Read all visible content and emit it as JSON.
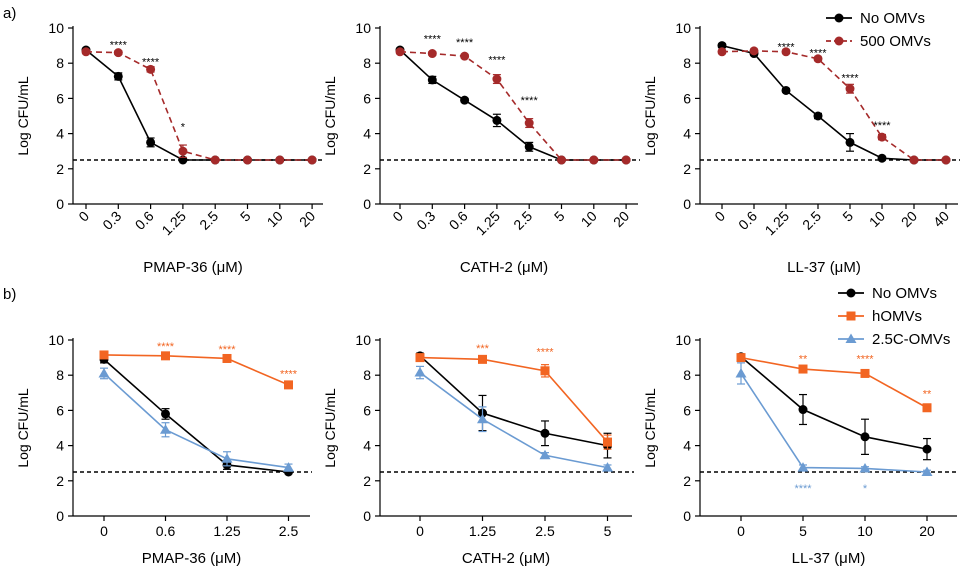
{
  "panel_labels": [
    "a)",
    "b)"
  ],
  "legends": {
    "a": [
      {
        "name": "No OMVs",
        "color": "#000000",
        "marker": "circle",
        "dash": false
      },
      {
        "name": "500 OMVs",
        "color": "#a52a2a",
        "marker": "circle",
        "dash": true
      }
    ],
    "b": [
      {
        "name": "No OMVs",
        "color": "#000000",
        "marker": "circle"
      },
      {
        "name": "hOMVs",
        "color": "#f26522",
        "marker": "square"
      },
      {
        "name": "2.5C-OMVs",
        "color": "#6b9bd2",
        "marker": "triangle"
      }
    ]
  },
  "chart_data": [
    {
      "type": "line",
      "row": "a",
      "ylabel": "Log CFU/mL",
      "xlabel": "PMAP-36 (μM)",
      "categories": [
        "0",
        "0.3",
        "0.6",
        "1.25",
        "2.5",
        "5",
        "10",
        "20"
      ],
      "ylim": [
        0,
        10
      ],
      "yticks": [
        0,
        2,
        4,
        6,
        8,
        10
      ],
      "threshold": 2.5,
      "series": [
        {
          "name": "No OMVs",
          "color": "#000000",
          "marker": "circle",
          "dash": false,
          "values": [
            8.75,
            7.25,
            3.5,
            2.5,
            2.5,
            2.5,
            2.5,
            2.5
          ],
          "errors": [
            0.1,
            0.2,
            0.25,
            0,
            0,
            0,
            0,
            0
          ]
        },
        {
          "name": "500 OMVs",
          "color": "#a52a2a",
          "marker": "circle",
          "dash": true,
          "values": [
            8.65,
            8.6,
            7.65,
            3.0,
            2.5,
            2.5,
            2.5,
            2.5
          ],
          "errors": [
            0.1,
            0.1,
            0.15,
            0.35,
            0,
            0,
            0,
            0
          ]
        }
      ],
      "annotations": [
        {
          "x": 1,
          "y": 9.05,
          "text": "****",
          "color": "#000000"
        },
        {
          "x": 2,
          "y": 8.1,
          "text": "****",
          "color": "#000000"
        },
        {
          "x": 3,
          "y": 4.4,
          "text": "*",
          "color": "#000000"
        }
      ]
    },
    {
      "type": "line",
      "row": "a",
      "ylabel": "Log CFU/mL",
      "xlabel": "CATH-2 (μM)",
      "categories": [
        "0",
        "0.3",
        "0.6",
        "1.25",
        "2.5",
        "5",
        "10",
        "20"
      ],
      "ylim": [
        0,
        10
      ],
      "yticks": [
        0,
        2,
        4,
        6,
        8,
        10
      ],
      "threshold": 2.5,
      "series": [
        {
          "name": "No OMVs",
          "color": "#000000",
          "marker": "circle",
          "dash": false,
          "values": [
            8.75,
            7.05,
            5.9,
            4.75,
            3.25,
            2.5,
            2.5,
            2.5
          ],
          "errors": [
            0.1,
            0.2,
            0.1,
            0.35,
            0.25,
            0,
            0,
            0
          ]
        },
        {
          "name": "500 OMVs",
          "color": "#a52a2a",
          "marker": "circle",
          "dash": true,
          "values": [
            8.65,
            8.55,
            8.4,
            7.1,
            4.6,
            2.5,
            2.5,
            2.5
          ],
          "errors": [
            0.1,
            0.1,
            0.1,
            0.25,
            0.25,
            0,
            0,
            0
          ]
        }
      ],
      "annotations": [
        {
          "x": 1,
          "y": 9.4,
          "text": "****",
          "color": "#000000"
        },
        {
          "x": 2,
          "y": 9.2,
          "text": "****",
          "color": "#000000"
        },
        {
          "x": 3,
          "y": 8.2,
          "text": "****",
          "color": "#000000"
        },
        {
          "x": 4,
          "y": 5.9,
          "text": "****",
          "color": "#000000"
        }
      ]
    },
    {
      "type": "line",
      "row": "a",
      "ylabel": "Log CFU/mL",
      "xlabel": "LL-37 (μM)",
      "categories": [
        "0",
        "0.6",
        "1.25",
        "2.5",
        "5",
        "10",
        "20",
        "40"
      ],
      "ylim": [
        0,
        10
      ],
      "yticks": [
        0,
        2,
        4,
        6,
        8,
        10
      ],
      "threshold": 2.5,
      "series": [
        {
          "name": "No OMVs",
          "color": "#000000",
          "marker": "circle",
          "dash": false,
          "values": [
            9.0,
            8.55,
            6.45,
            5.0,
            3.5,
            2.6,
            2.5,
            2.5
          ],
          "errors": [
            0.1,
            0.1,
            0.1,
            0.15,
            0.5,
            0.05,
            0,
            0
          ]
        },
        {
          "name": "500 OMVs",
          "color": "#a52a2a",
          "marker": "circle",
          "dash": true,
          "values": [
            8.65,
            8.7,
            8.65,
            8.25,
            6.55,
            3.8,
            2.5,
            2.5
          ],
          "errors": [
            0.1,
            0.1,
            0.1,
            0.1,
            0.25,
            0.15,
            0,
            0
          ]
        }
      ],
      "annotations": [
        {
          "x": 2,
          "y": 8.95,
          "text": "****",
          "color": "#000000"
        },
        {
          "x": 3,
          "y": 8.6,
          "text": "****",
          "color": "#000000"
        },
        {
          "x": 4,
          "y": 7.2,
          "text": "****",
          "color": "#000000"
        },
        {
          "x": 5,
          "y": 4.5,
          "text": "****",
          "color": "#000000"
        }
      ]
    },
    {
      "type": "line",
      "row": "b",
      "ylabel": "Log CFU/mL",
      "xlabel": "PMAP-36 (μM)",
      "categories": [
        "0",
        "0.6",
        "1.25",
        "2.5"
      ],
      "ylim": [
        0,
        10
      ],
      "yticks": [
        0,
        2,
        4,
        6,
        8,
        10
      ],
      "threshold": 2.5,
      "series": [
        {
          "name": "No OMVs",
          "color": "#000000",
          "marker": "circle",
          "values": [
            8.9,
            5.8,
            2.9,
            2.5
          ],
          "errors": [
            0.2,
            0.3,
            0.25,
            0.1
          ]
        },
        {
          "name": "hOMVs",
          "color": "#f26522",
          "marker": "square",
          "values": [
            9.15,
            9.1,
            8.95,
            7.45
          ],
          "errors": [
            0.1,
            0.1,
            0.2,
            0.1
          ]
        },
        {
          "name": "2.5C-OMVs",
          "color": "#6b9bd2",
          "marker": "triangle",
          "values": [
            8.1,
            4.9,
            3.25,
            2.75
          ],
          "errors": [
            0.3,
            0.4,
            0.4,
            0.2
          ]
        }
      ],
      "annotations": [
        {
          "x": 1,
          "y": 9.65,
          "text": "****",
          "color": "#f26522"
        },
        {
          "x": 2,
          "y": 9.5,
          "text": "****",
          "color": "#f26522"
        },
        {
          "x": 3,
          "y": 8.1,
          "text": "****",
          "color": "#f26522"
        }
      ]
    },
    {
      "type": "line",
      "row": "b",
      "ylabel": "Log CFU/mL",
      "xlabel": "CATH-2 (μM)",
      "categories": [
        "0",
        "1.25",
        "2.5",
        "5"
      ],
      "ylim": [
        0,
        10
      ],
      "yticks": [
        0,
        2,
        4,
        6,
        8,
        10
      ],
      "threshold": 2.5,
      "series": [
        {
          "name": "No OMVs",
          "color": "#000000",
          "marker": "circle",
          "values": [
            9.1,
            5.85,
            4.7,
            4.0
          ],
          "errors": [
            0.15,
            1.0,
            0.7,
            0.7
          ]
        },
        {
          "name": "hOMVs",
          "color": "#f26522",
          "marker": "square",
          "values": [
            9.0,
            8.9,
            8.25,
            4.2
          ],
          "errors": [
            0.1,
            0.15,
            0.35,
            0.4
          ]
        },
        {
          "name": "2.5C-OMVs",
          "color": "#6b9bd2",
          "marker": "triangle",
          "values": [
            8.15,
            5.5,
            3.45,
            2.75
          ],
          "errors": [
            0.35,
            0.7,
            0.15,
            0.15
          ]
        }
      ],
      "annotations": [
        {
          "x": 1,
          "y": 9.55,
          "text": "***",
          "color": "#f26522"
        },
        {
          "x": 2,
          "y": 9.35,
          "text": "****",
          "color": "#f26522"
        }
      ]
    },
    {
      "type": "line",
      "row": "b",
      "ylabel": "Log CFU/mL",
      "xlabel": "LL-37 (μM)",
      "categories": [
        "0",
        "5",
        "10",
        "20"
      ],
      "ylim": [
        0,
        10
      ],
      "yticks": [
        0,
        2,
        4,
        6,
        8,
        10
      ],
      "threshold": 2.5,
      "series": [
        {
          "name": "No OMVs",
          "color": "#000000",
          "marker": "circle",
          "values": [
            9.05,
            6.05,
            4.5,
            3.8
          ],
          "errors": [
            0.15,
            0.85,
            1.0,
            0.6
          ]
        },
        {
          "name": "hOMVs",
          "color": "#f26522",
          "marker": "square",
          "values": [
            9.0,
            8.35,
            8.1,
            6.15
          ],
          "errors": [
            0.1,
            0.1,
            0.1,
            0.1
          ]
        },
        {
          "name": "2.5C-OMVs",
          "color": "#6b9bd2",
          "marker": "triangle",
          "values": [
            8.1,
            2.75,
            2.7,
            2.5
          ],
          "errors": [
            0.6,
            0.15,
            0.1,
            0.1
          ]
        }
      ],
      "annotations": [
        {
          "x": 1,
          "y": 8.95,
          "text": "**",
          "color": "#f26522"
        },
        {
          "x": 2,
          "y": 8.95,
          "text": "****",
          "color": "#f26522"
        },
        {
          "x": 3,
          "y": 6.95,
          "text": "**",
          "color": "#f26522"
        },
        {
          "x": 1,
          "y": 1.6,
          "text": "****",
          "color": "#6b9bd2"
        },
        {
          "x": 2,
          "y": 1.6,
          "text": "*",
          "color": "#6b9bd2"
        }
      ]
    }
  ]
}
